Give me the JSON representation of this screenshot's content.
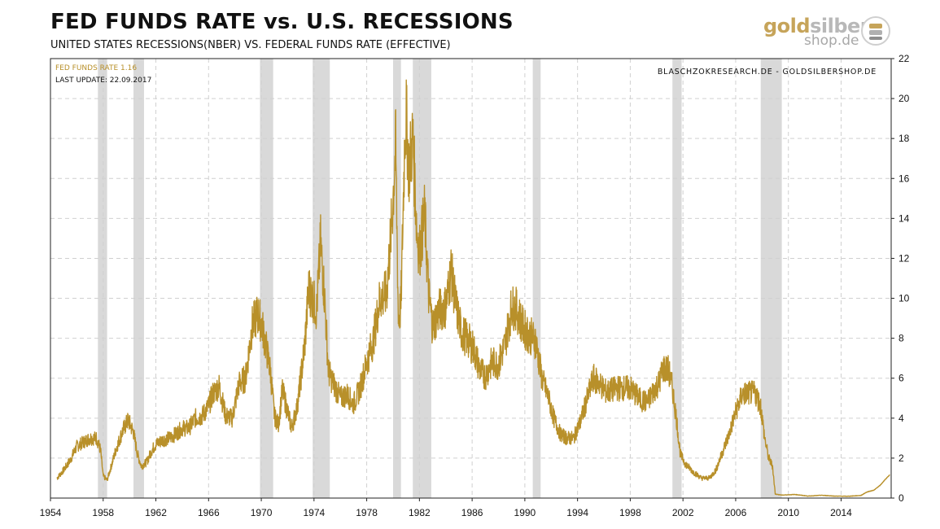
{
  "header": {
    "title": "FED FUNDS RATE vs. U.S. RECESSIONS",
    "subtitle": "UNITED STATES RECESSIONS(NBER) VS. FEDERAL FUNDS RATE (EFFECTIVE)"
  },
  "logo": {
    "gold": "gold",
    "silber": "silber",
    "sub": "shop.de"
  },
  "chart_data": {
    "type": "line",
    "title": "FED FUNDS RATE vs. U.S. RECESSIONS",
    "subtitle": "UNITED STATES RECESSIONS(NBER) VS. FEDERAL FUNDS RATE (EFFECTIVE)",
    "legend": "FED FUNDS RATE 1.16",
    "last_update": "LAST UPDATE: 22.09.2017",
    "source": "BLASCHZOKRESEARCH.DE  -  GOLDSILBERSHOP.DE",
    "xlim": [
      1954.0,
      2017.8
    ],
    "ylim": [
      0,
      22
    ],
    "x_ticks": [
      1954,
      1958,
      1962,
      1966,
      1970,
      1974,
      1978,
      1982,
      1986,
      1990,
      1994,
      1998,
      2002,
      2006,
      2010,
      2014
    ],
    "y_ticks": [
      0,
      2,
      4,
      6,
      8,
      10,
      12,
      14,
      16,
      18,
      20,
      22
    ],
    "grid": true,
    "y_axis_position": "right",
    "recessions": [
      [
        1957.6,
        1958.3
      ],
      [
        1960.3,
        1961.1
      ],
      [
        1969.9,
        1970.9
      ],
      [
        1973.9,
        1975.2
      ],
      [
        1980.0,
        1980.6
      ],
      [
        1981.5,
        1982.9
      ],
      [
        1990.6,
        1991.2
      ],
      [
        2001.2,
        2001.9
      ],
      [
        2007.9,
        2009.5
      ]
    ],
    "series": [
      {
        "name": "Fed Funds Rate (effective)",
        "color": "#b8902a",
        "x": [
          1954.5,
          1955.0,
          1955.5,
          1956.0,
          1956.5,
          1957.0,
          1957.5,
          1957.8,
          1958.0,
          1958.3,
          1958.7,
          1959.0,
          1959.5,
          1959.9,
          1960.3,
          1960.6,
          1960.9,
          1961.3,
          1961.7,
          1962.0,
          1962.5,
          1963.0,
          1963.5,
          1964.0,
          1964.5,
          1965.0,
          1965.5,
          1966.0,
          1966.3,
          1966.8,
          1967.3,
          1967.8,
          1968.3,
          1968.8,
          1969.3,
          1969.7,
          1970.0,
          1970.3,
          1970.7,
          1971.0,
          1971.3,
          1971.6,
          1971.9,
          1972.3,
          1972.7,
          1973.0,
          1973.3,
          1973.6,
          1973.9,
          1974.2,
          1974.5,
          1974.8,
          1975.1,
          1975.5,
          1976.0,
          1976.5,
          1977.0,
          1977.5,
          1978.0,
          1978.5,
          1979.0,
          1979.5,
          1979.9,
          1980.2,
          1980.4,
          1980.6,
          1980.9,
          1981.0,
          1981.2,
          1981.5,
          1981.8,
          1982.0,
          1982.4,
          1982.7,
          1983.0,
          1983.5,
          1984.0,
          1984.4,
          1984.8,
          1985.2,
          1985.7,
          1986.1,
          1986.6,
          1987.0,
          1987.5,
          1988.0,
          1988.5,
          1989.0,
          1989.4,
          1989.9,
          1990.3,
          1990.8,
          1991.3,
          1991.8,
          1992.2,
          1992.7,
          1993.2,
          1993.7,
          1994.2,
          1994.7,
          1995.2,
          1995.7,
          1996.2,
          1997.0,
          1998.0,
          1998.8,
          1999.3,
          1999.8,
          2000.2,
          2000.5,
          2000.9,
          2001.2,
          2001.5,
          2001.8,
          2002.2,
          2002.8,
          2003.4,
          2004.0,
          2004.5,
          2005.0,
          2005.5,
          2006.0,
          2006.5,
          2007.0,
          2007.5,
          2007.9,
          2008.2,
          2008.5,
          2008.8,
          2009.0,
          2009.5,
          2010.5,
          2011.5,
          2012.5,
          2013.5,
          2014.5,
          2015.5,
          2015.95,
          2016.5,
          2017.0,
          2017.3,
          2017.7
        ],
        "values": [
          1.0,
          1.4,
          1.9,
          2.6,
          2.8,
          3.0,
          3.0,
          2.4,
          1.1,
          0.9,
          1.8,
          2.5,
          3.4,
          3.9,
          3.3,
          2.2,
          1.6,
          1.8,
          2.4,
          2.7,
          2.9,
          3.0,
          3.2,
          3.5,
          3.5,
          4.0,
          4.1,
          4.6,
          5.2,
          5.6,
          4.1,
          4.0,
          5.7,
          6.0,
          8.6,
          9.2,
          8.8,
          7.8,
          6.3,
          4.1,
          3.7,
          5.4,
          4.6,
          3.5,
          4.5,
          6.0,
          7.7,
          10.5,
          10.0,
          9.4,
          12.8,
          10.1,
          6.3,
          5.7,
          5.0,
          5.2,
          4.7,
          5.5,
          6.8,
          7.9,
          10.0,
          10.2,
          13.8,
          17.6,
          9.0,
          9.6,
          18.5,
          19.0,
          16.5,
          18.0,
          13.5,
          12.3,
          14.2,
          10.2,
          8.6,
          9.4,
          9.6,
          11.4,
          9.5,
          8.3,
          7.9,
          7.5,
          6.4,
          6.1,
          6.8,
          6.7,
          7.7,
          9.6,
          9.4,
          8.5,
          8.2,
          7.9,
          6.0,
          5.0,
          4.0,
          3.2,
          3.0,
          3.0,
          3.8,
          4.9,
          6.0,
          5.7,
          5.3,
          5.5,
          5.5,
          4.9,
          4.8,
          5.4,
          5.8,
          6.5,
          6.4,
          5.5,
          4.0,
          2.2,
          1.7,
          1.3,
          1.0,
          1.0,
          1.4,
          2.3,
          3.2,
          4.3,
          5.2,
          5.25,
          5.25,
          4.6,
          3.0,
          2.0,
          1.6,
          0.2,
          0.15,
          0.18,
          0.1,
          0.14,
          0.1,
          0.09,
          0.13,
          0.3,
          0.4,
          0.66,
          0.9,
          1.16
        ]
      }
    ]
  }
}
